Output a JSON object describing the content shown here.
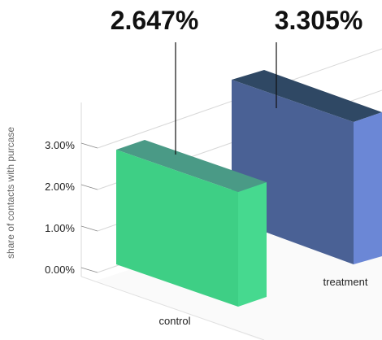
{
  "chart_data": {
    "type": "bar",
    "categories": [
      "control",
      "treatment"
    ],
    "values": [
      2.647,
      3.305
    ],
    "value_labels": [
      "2.647%",
      "3.305%"
    ],
    "unit": "%",
    "title": "",
    "xlabel": "",
    "ylabel": "share of contacts with purcase",
    "ylim": [
      0,
      4
    ],
    "yticks": [
      {
        "value": 0,
        "label": "0.00%"
      },
      {
        "value": 1,
        "label": "1.00%"
      },
      {
        "value": 2,
        "label": "2.00%"
      },
      {
        "value": 3,
        "label": "3.00%"
      }
    ],
    "grid": true,
    "legend": "none",
    "colors": {
      "control_front": "#3ecf85",
      "control_side": "#46d98f",
      "control_top": "#4a9a86",
      "treatment_front": "#4a6195",
      "treatment_side": "#6b87d6",
      "treatment_top": "#2f4864",
      "grid": "#d8d8d8",
      "text": "#111111"
    }
  }
}
